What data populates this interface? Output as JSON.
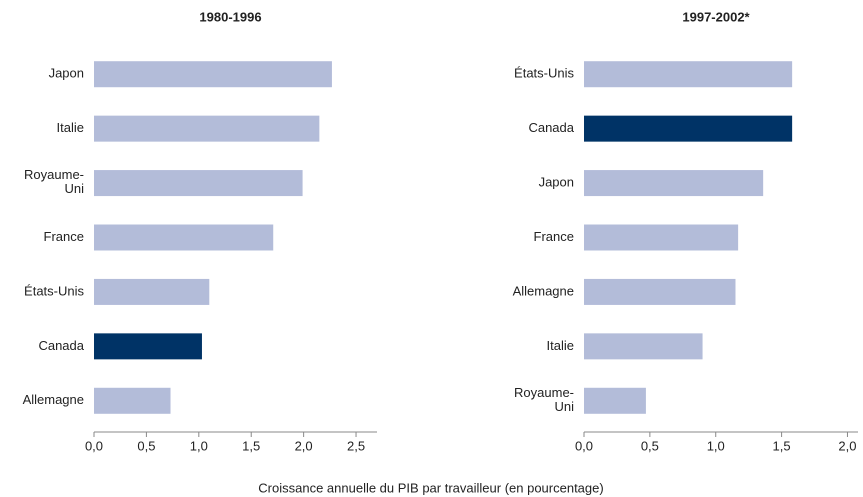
{
  "xlabel": "Croissance annuelle du PIB par travailleur (en pourcentage)",
  "chart_data": [
    {
      "type": "barh",
      "title": "1980-1996",
      "categories": [
        "Japon",
        "Italie",
        "Royaume-\nUni",
        "France",
        "États-Unis",
        "Canada",
        "Allemagne"
      ],
      "values": [
        2.27,
        2.15,
        1.99,
        1.71,
        1.1,
        1.03,
        0.73
      ],
      "colors": [
        "#b3bcd9",
        "#b3bcd9",
        "#b3bcd9",
        "#b3bcd9",
        "#b3bcd9",
        "#003366",
        "#b3bcd9"
      ],
      "xlim": [
        0,
        2.7
      ],
      "xticks": [
        {
          "value": 0,
          "label": "0,0"
        },
        {
          "value": 0.5,
          "label": "0,5"
        },
        {
          "value": 1,
          "label": "1,0"
        },
        {
          "value": 1.5,
          "label": "1,5"
        },
        {
          "value": 2,
          "label": "2,0"
        },
        {
          "value": 2.5,
          "label": "2,5"
        }
      ]
    },
    {
      "type": "barh",
      "title": "1997-2002*",
      "categories": [
        "États-Unis",
        "Canada",
        "Japon",
        "France",
        "Allemagne",
        "Italie",
        "Royaume-\nUni"
      ],
      "values": [
        1.58,
        1.58,
        1.36,
        1.17,
        1.15,
        0.9,
        0.47
      ],
      "colors": [
        "#b3bcd9",
        "#003366",
        "#b3bcd9",
        "#b3bcd9",
        "#b3bcd9",
        "#b3bcd9",
        "#b3bcd9"
      ],
      "xlim": [
        0,
        2.08
      ],
      "xticks": [
        {
          "value": 0,
          "label": "0,0"
        },
        {
          "value": 0.5,
          "label": "0,5"
        },
        {
          "value": 1,
          "label": "1,0"
        },
        {
          "value": 1.5,
          "label": "1,5"
        },
        {
          "value": 2,
          "label": "2,0"
        }
      ]
    }
  ]
}
